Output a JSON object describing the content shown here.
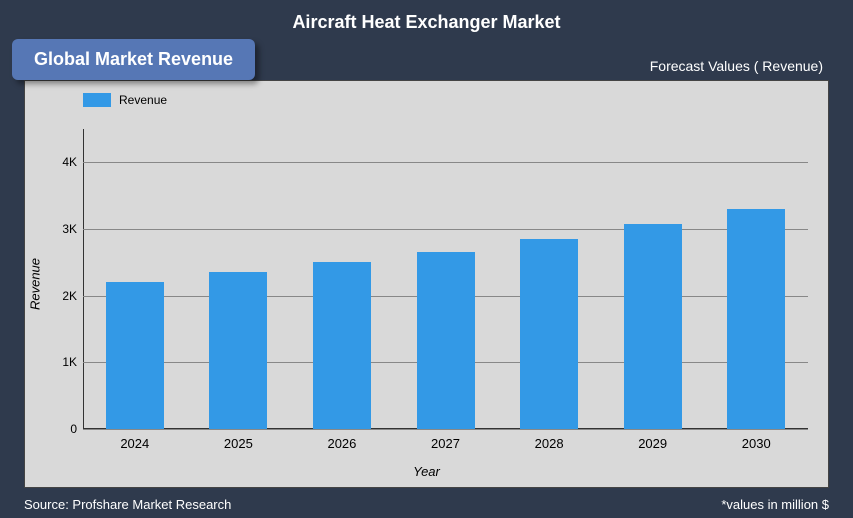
{
  "title": "Aircraft Heat Exchanger Market",
  "badge": "Global Market Revenue",
  "forecast_label": "Forecast Values ( Revenue)",
  "legend_label": "Revenue",
  "y_axis_label": "Revenue",
  "x_axis_label": "Year",
  "source": "Source: Profshare Market Research",
  "values_note": "*values in million $",
  "chart": {
    "type": "bar",
    "categories": [
      "2024",
      "2025",
      "2026",
      "2027",
      "2028",
      "2029",
      "2030"
    ],
    "values": [
      2200,
      2350,
      2500,
      2650,
      2850,
      3080,
      3300
    ],
    "bar_color": "#3399e6",
    "background_color": "#d9d9d9",
    "container_color": "#2f3a4d",
    "badge_color": "#5677b5",
    "grid_color": "#888888",
    "text_color": "#000000",
    "outer_text_color": "#ffffff",
    "y_ticks": [
      0,
      1000,
      2000,
      3000,
      4000
    ],
    "y_tick_labels": [
      "0",
      "1K",
      "2K",
      "3K",
      "4K"
    ],
    "ylim": [
      0,
      4500
    ],
    "bar_width_pct": 56,
    "title_fontsize": 18,
    "label_fontsize": 13,
    "tick_fontsize": 12
  }
}
